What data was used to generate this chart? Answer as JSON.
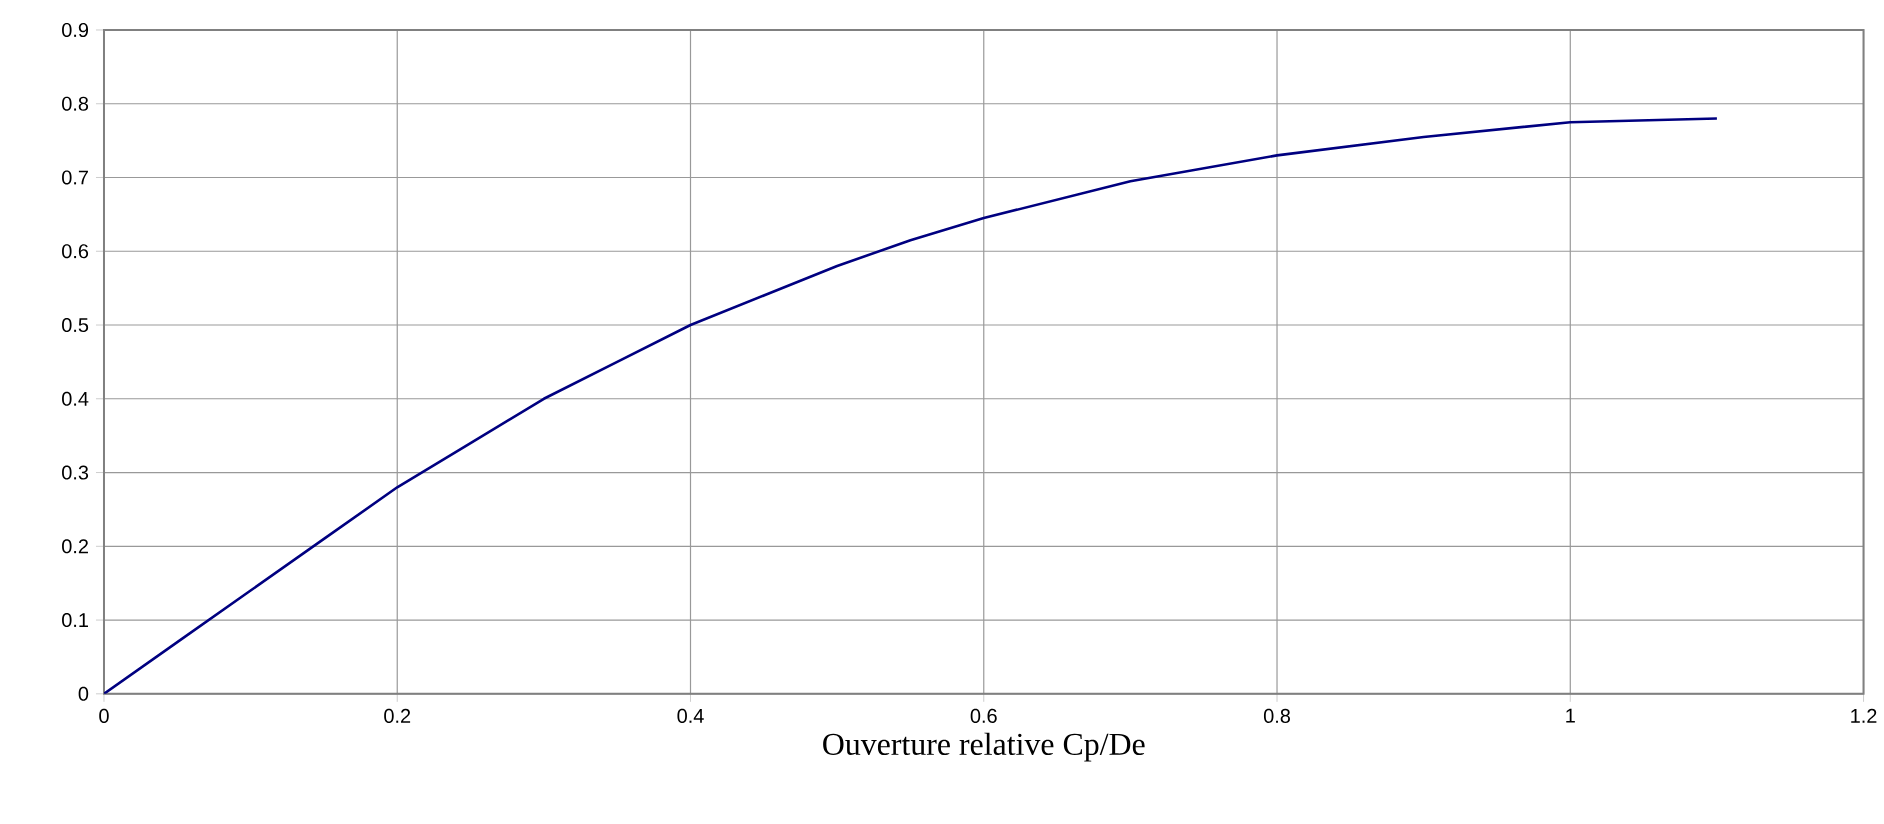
{
  "chart_data": {
    "type": "line",
    "xlabel": "Ouverture relative Cp/De",
    "x": [
      0,
      0.05,
      0.1,
      0.15,
      0.2,
      0.25,
      0.3,
      0.35,
      0.4,
      0.45,
      0.5,
      0.55,
      0.6,
      0.7,
      0.8,
      0.9,
      1.0,
      1.1
    ],
    "series": [
      {
        "color": "#000080",
        "values": [
          0,
          0.07,
          0.14,
          0.21,
          0.28,
          0.34,
          0.4,
          0.45,
          0.5,
          0.54,
          0.58,
          0.615,
          0.645,
          0.695,
          0.73,
          0.755,
          0.775,
          0.78
        ]
      }
    ],
    "xlim": [
      0,
      1.2
    ],
    "ylim": [
      0,
      0.9
    ],
    "xticks": [
      0,
      0.2,
      0.4,
      0.6,
      0.8,
      1,
      1.2
    ],
    "yticks": [
      0,
      0.1,
      0.2,
      0.3,
      0.4,
      0.5,
      0.6,
      0.7,
      0.8,
      0.9
    ],
    "grid": true,
    "marker": "none",
    "line_style": "solid"
  }
}
